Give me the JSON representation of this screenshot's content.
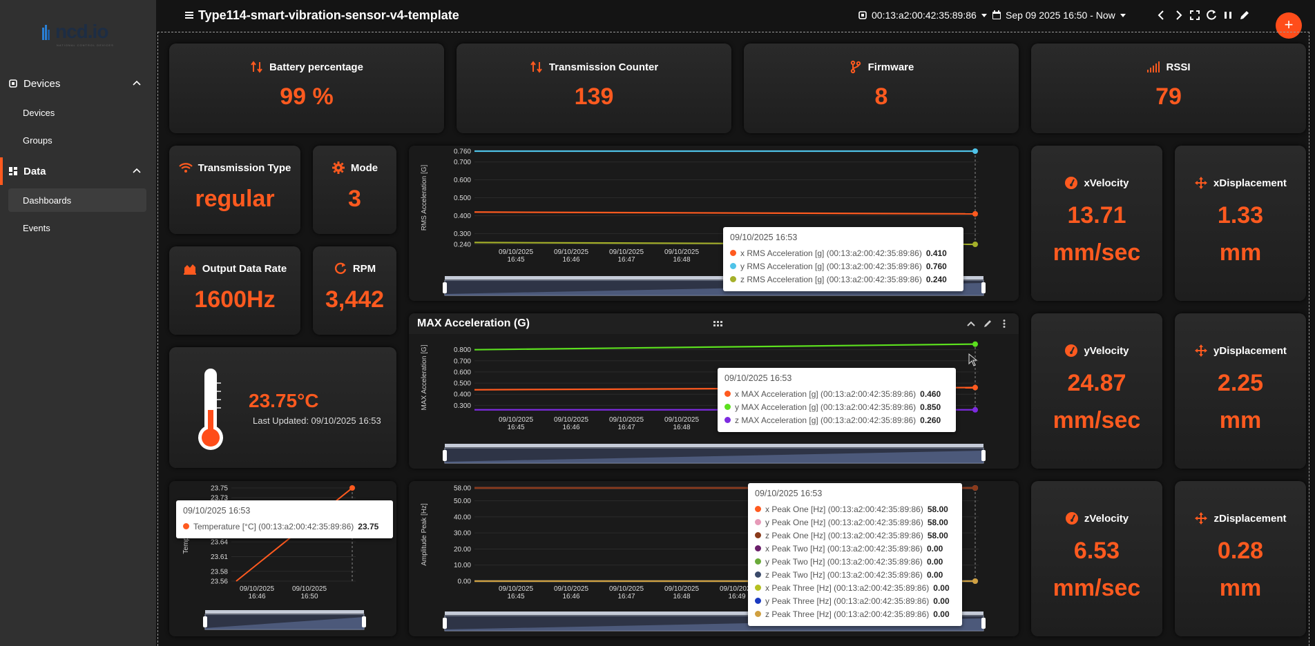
{
  "app": {
    "logo_text": "ncd.io",
    "logo_sub": "NATIONAL CONTROL DEVICES"
  },
  "sidebar": {
    "sections": [
      {
        "label": "Devices",
        "icon": "chip-icon",
        "items": [
          {
            "label": "Devices"
          },
          {
            "label": "Groups"
          }
        ]
      },
      {
        "label": "Data",
        "icon": "dashboard-icon",
        "items": [
          {
            "label": "Dashboards",
            "active": true
          },
          {
            "label": "Events"
          }
        ]
      }
    ]
  },
  "topbar": {
    "title": "Type114-smart-vibration-sensor-v4-template",
    "device": "00:13:a2:00:42:35:89:86",
    "time_range": "Sep 09 2025 16:50 - Now",
    "add_label": "+"
  },
  "colors": {
    "accent": "#ff5a1f",
    "x_series": "#ff5a1f",
    "y_rms": "#4fc3e8",
    "z_rms": "#a5b02a",
    "y_max": "#5ce01e",
    "z_max": "#7d2be0"
  },
  "stats": {
    "battery": {
      "title": "Battery percentage",
      "value": "99 %"
    },
    "counter": {
      "title": "Transmission Counter",
      "value": "139"
    },
    "firmware": {
      "title": "Firmware",
      "value": "8"
    },
    "rssi": {
      "title": "RSSI",
      "value": "79"
    },
    "tx_type": {
      "title": "Transmission Type",
      "value": "regular"
    },
    "mode": {
      "title": "Mode",
      "value": "3"
    },
    "odr": {
      "title": "Output Data Rate",
      "value": "1600Hz"
    },
    "rpm": {
      "title": "RPM",
      "value": "3,442"
    },
    "xvel": {
      "title": "xVelocity",
      "value": "13.71",
      "unit": "mm/sec"
    },
    "yvel": {
      "title": "yVelocity",
      "value": "24.87",
      "unit": "mm/sec"
    },
    "zvel": {
      "title": "zVelocity",
      "value": "6.53",
      "unit": "mm/sec"
    },
    "xdisp": {
      "title": "xDisplacement",
      "value": "1.33",
      "unit": "mm"
    },
    "ydisp": {
      "title": "yDisplacement",
      "value": "2.25",
      "unit": "mm"
    },
    "zdisp": {
      "title": "zDisplacement",
      "value": "0.28",
      "unit": "mm"
    }
  },
  "temperature": {
    "value": "23.75°C",
    "updated": "Last Updated: 09/10/2025 16:53"
  },
  "chart_data": [
    {
      "id": "rms",
      "type": "line",
      "title": "",
      "ylabel": "RMS Acceleration [G]",
      "yticks": [
        "0.760",
        "0.700",
        "0.600",
        "0.500",
        "0.400",
        "0.300",
        "0.240"
      ],
      "ytick_values": [
        0.76,
        0.7,
        0.6,
        0.5,
        0.4,
        0.3,
        0.24
      ],
      "ylim": [
        0.24,
        0.76
      ],
      "xticks": [
        [
          "09/10/2025",
          "16:45"
        ],
        [
          "09/10/2025",
          "16:46"
        ],
        [
          "09/10/2025",
          "16:47"
        ],
        [
          "09/10/2025",
          "16:48"
        ]
      ],
      "series": [
        {
          "name": "x RMS Acceleration [g] (00:13:a2:00:42:35:89:86)",
          "values": [
            0.42,
            0.41
          ],
          "color": "#ff5a1f",
          "label": "0.410"
        },
        {
          "name": "y RMS Acceleration [g] (00:13:a2:00:42:35:89:86)",
          "values": [
            0.76,
            0.76
          ],
          "color": "#4fc3e8",
          "label": "0.760"
        },
        {
          "name": "z RMS Acceleration [g] (00:13:a2:00:42:35:89:86)",
          "values": [
            0.25,
            0.24
          ],
          "color": "#a5b02a",
          "label": "0.240"
        }
      ],
      "tooltip_time": "09/10/2025 16:53"
    },
    {
      "id": "max",
      "type": "line",
      "title": "MAX Acceleration (G)",
      "ylabel": "MAX Acceleration [G]",
      "yticks": [
        "0.800",
        "0.700",
        "0.600",
        "0.500",
        "0.400",
        "0.300"
      ],
      "ytick_values": [
        0.8,
        0.7,
        0.6,
        0.5,
        0.4,
        0.3
      ],
      "ylim": [
        0.24,
        0.86
      ],
      "xticks": [
        [
          "09/10/2025",
          "16:45"
        ],
        [
          "09/10/2025",
          "16:46"
        ],
        [
          "09/10/2025",
          "16:47"
        ],
        [
          "09/10/2025",
          "16:48"
        ]
      ],
      "series": [
        {
          "name": "x MAX Acceleration [g] (00:13:a2:00:42:35:89:86)",
          "values": [
            0.44,
            0.46
          ],
          "color": "#ff5a1f",
          "label": "0.460"
        },
        {
          "name": "y MAX Acceleration [g] (00:13:a2:00:42:35:89:86)",
          "values": [
            0.8,
            0.85
          ],
          "color": "#5ce01e",
          "label": "0.850"
        },
        {
          "name": "z MAX Acceleration [g] (00:13:a2:00:42:35:89:86)",
          "values": [
            0.26,
            0.26
          ],
          "color": "#7d2be0",
          "label": "0.260"
        }
      ],
      "tooltip_time": "09/10/2025 16:53"
    },
    {
      "id": "temp",
      "type": "line",
      "title": "",
      "ylabel": "Temperature",
      "yticks": [
        "23.75",
        "23.73",
        "23.64",
        "23.61",
        "23.58",
        "23.56"
      ],
      "ytick_values": [
        23.75,
        23.73,
        23.64,
        23.61,
        23.58,
        23.56
      ],
      "ylim": [
        23.56,
        23.75
      ],
      "xticks": [
        [
          "09/10/2025",
          "16:46"
        ],
        [
          "09/10/2025",
          "16:50"
        ]
      ],
      "series": [
        {
          "name": "Temperature [°C] (00:13:a2:00:42:35:89:86)",
          "values": [
            23.56,
            23.75
          ],
          "color": "#ff5a1f",
          "label": "23.75"
        }
      ],
      "tooltip_time": "09/10/2025 16:53"
    },
    {
      "id": "peak",
      "type": "line",
      "title": "",
      "ylabel": "Amplitude Peak [Hz]",
      "yticks": [
        "58.00",
        "50.00",
        "40.00",
        "30.00",
        "20.00",
        "10.00",
        "0.00"
      ],
      "ytick_values": [
        58,
        50,
        40,
        30,
        20,
        10,
        0
      ],
      "ylim": [
        0,
        58
      ],
      "xticks": [
        [
          "09/10/2025",
          "16:45"
        ],
        [
          "09/10/2025",
          "16:46"
        ],
        [
          "09/10/2025",
          "16:47"
        ],
        [
          "09/10/2025",
          "16:48"
        ],
        [
          "09/10/2025",
          "16:49"
        ]
      ],
      "series": [
        {
          "name": "x Peak One [Hz] (00:13:a2:00:42:35:89:86)",
          "values": [
            58,
            58
          ],
          "color": "#ff5a1f",
          "label": "58.00"
        },
        {
          "name": "y Peak One [Hz] (00:13:a2:00:42:35:89:86)",
          "values": [
            58,
            58
          ],
          "color": "#e69ab8",
          "label": "58.00"
        },
        {
          "name": "z Peak One [Hz] (00:13:a2:00:42:35:89:86)",
          "values": [
            58,
            58
          ],
          "color": "#8a3a1a",
          "label": "58.00"
        },
        {
          "name": "x Peak Two [Hz] (00:13:a2:00:42:35:89:86)",
          "values": [
            0,
            0
          ],
          "color": "#6a1f6a",
          "label": "0.00"
        },
        {
          "name": "y Peak Two [Hz] (00:13:a2:00:42:35:89:86)",
          "values": [
            0,
            0
          ],
          "color": "#6aaa3a",
          "label": "0.00"
        },
        {
          "name": "z Peak Two [Hz] (00:13:a2:00:42:35:89:86)",
          "values": [
            0,
            0
          ],
          "color": "#3a4a6a",
          "label": "0.00"
        },
        {
          "name": "x Peak Three [Hz] (00:13:a2:00:42:35:89:86)",
          "values": [
            0,
            0
          ],
          "color": "#b5c020",
          "label": "0.00"
        },
        {
          "name": "y Peak Three [Hz] (00:13:a2:00:42:35:89:86)",
          "values": [
            0,
            0
          ],
          "color": "#1a3ac0",
          "label": "0.00"
        },
        {
          "name": "z Peak Three [Hz] (00:13:a2:00:42:35:89:86)",
          "values": [
            0,
            0
          ],
          "color": "#d0a040",
          "label": "0.00"
        }
      ],
      "tooltip_time": "09/10/2025 16:53"
    }
  ]
}
